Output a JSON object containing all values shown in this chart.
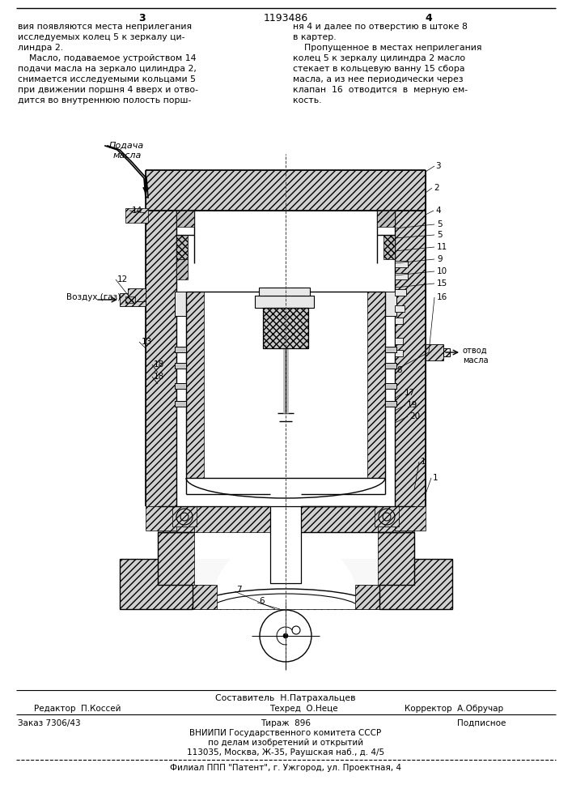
{
  "page_number_left": "3",
  "patent_number": "1193486",
  "page_number_right": "4",
  "text_left": "вия появляются места неприлегания\nисследуемых колец 5 к зеркалу ци-\nлиндра 2.\n    Масло, подаваемое устройством 14\nподачи масла на зеркало цилиндра 2,\nснимается исследуемыми кольцами 5\nпри движении поршня 4 вверх и отво-\nдится во внутреннюю полость порш-",
  "text_right": "ня 4 и далее по отверстию в штоке 8\nв картер.\n    Пропущенное в местах неприлегания\nколец 5 к зеркалу цилиндра 2 масло\nстекает в кольцевую ванну 15 сбора\nмасла, а из нее периодически через\nклапан  16  отводится  в  мерную ем-\nкость.",
  "footer_composer": "Составитель  Н.Патрахальцев",
  "footer_editor": "Редактор  П.Коссей",
  "footer_techred": "Техред  О.Неце",
  "footer_corrector": "Корректор  А.Обручар",
  "footer_order": "Заказ 7306/43",
  "footer_tirazh": "Тираж  896",
  "footer_podpisnoe": "Подписное",
  "footer_vniipи": "ВНИИПИ Государственного комитета СССР",
  "footer_po": "по делам изобретений и открытий",
  "footer_address": "113035, Москва, Ж-35, Раушская наб., д. 4/5",
  "footer_filial": "Филиал ППП \"Патент\", г. Ужгород, ул. Проектная, 4",
  "bg_color": "#ffffff"
}
